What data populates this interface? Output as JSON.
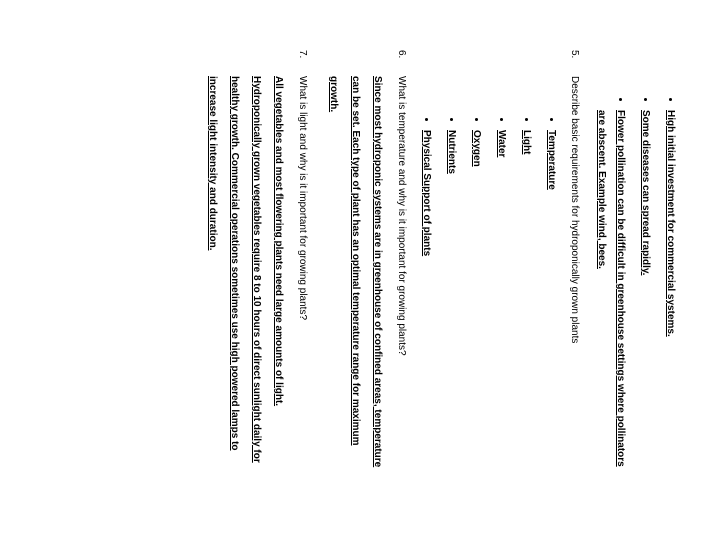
{
  "top_bullets": [
    "High initial investment for commercial systems.",
    "Some diseases can spread rapidly.",
    "Flower pollination can be difficult in greenhouse settings where pollinators are abscent. Example wind, bees."
  ],
  "q5": {
    "num": "5.",
    "text": "Describe basic requirements for hydroponically grown plants"
  },
  "q5_bullets": [
    "Temperature",
    "Light",
    "Water",
    "Oxygen",
    "Nutrients",
    "Physical Support of plants"
  ],
  "q6": {
    "num": "6.",
    "text": "What is temperature and why is it important for growing plants?"
  },
  "q6_answer": "Since most hydroponic systems are in greenhouse of confined areas, temperature can be set. Each type of plant has an optimal temperature range for maximum growth.",
  "q7": {
    "num": "7.",
    "text": "What is light and why is it important for growing plants?"
  },
  "q7_answer": "All vegetables and most flowering plants need large amounts of light. Hydroponically grown vegetables require 8 to 10 hours of direct sunlight daily for healthy growth. Commercial operations sometimes use high powered lamps to increase light intensity and duration."
}
